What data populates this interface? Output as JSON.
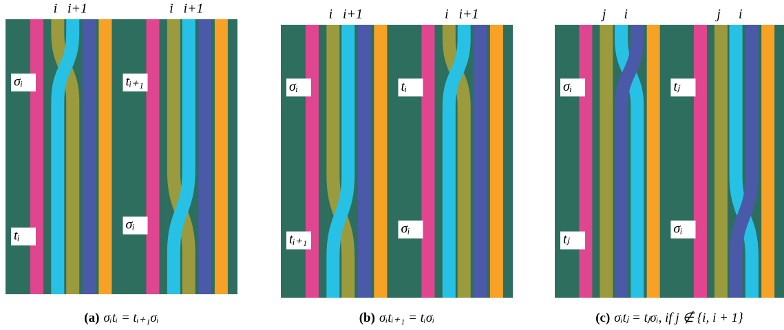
{
  "panels": [
    {
      "top_labels": [
        "i",
        "i+1",
        "i",
        "i+1"
      ],
      "side_labels": [
        "σᵢ",
        "tᵢ₊₁",
        "tᵢ",
        "σᵢ"
      ],
      "caption_tag": "(a)",
      "caption": "σᵢtᵢ = tᵢ₊₁σᵢ"
    },
    {
      "top_labels": [
        "i",
        "i+1",
        "i",
        "i+1"
      ],
      "side_labels": [
        "σᵢ",
        "tᵢ",
        "tᵢ₊₁",
        "σᵢ"
      ],
      "caption_tag": "(b)",
      "caption": "σᵢtᵢ₊₁ = tᵢσᵢ"
    },
    {
      "top_labels": [
        "j",
        "i",
        "j",
        "i"
      ],
      "side_labels": [
        "σᵢ",
        "tⱼ",
        "tⱼ",
        "σᵢ"
      ],
      "caption_tag": "(c)",
      "caption": "σᵢtⱼ = tⱼσᵢ, if j ∉ {i, i + 1}"
    }
  ]
}
